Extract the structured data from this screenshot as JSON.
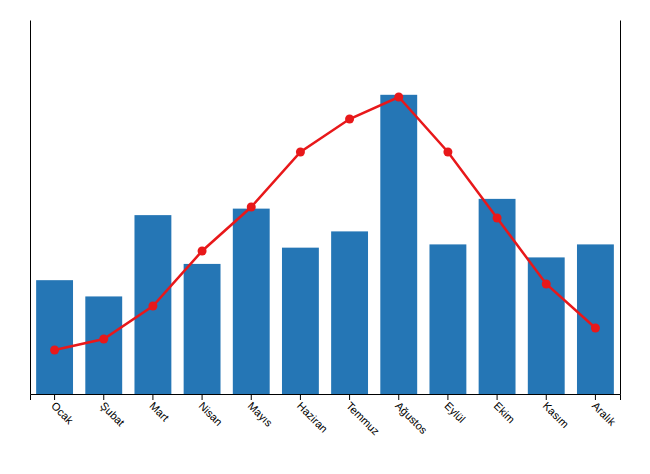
{
  "chart_data": {
    "type": "bar",
    "categories": [
      "Ocak",
      "Şubat",
      "Mart",
      "Nisan",
      "Mayıs",
      "Haziran",
      "Temmuz",
      "Ağustos",
      "Eylül",
      "Ekim",
      "Kasım",
      "Aralık"
    ],
    "series": [
      {
        "type": "bar",
        "color": "#2576b5",
        "values": [
          35,
          30,
          55,
          40,
          57,
          45,
          50,
          92,
          46,
          60,
          42,
          46
        ]
      },
      {
        "type": "line",
        "color": "#e8181a",
        "marker": "circle",
        "axis": "y2",
        "values": [
          2,
          3,
          6,
          11,
          15,
          20,
          23,
          25,
          20,
          14,
          8,
          4
        ]
      }
    ],
    "ylim": [
      0,
      115
    ],
    "y2lim": [
      -2,
      32
    ],
    "tick_labels": "x"
  }
}
